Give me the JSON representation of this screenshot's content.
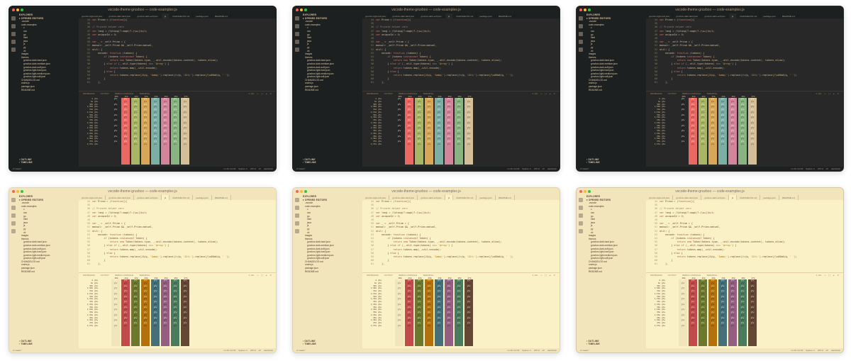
{
  "window_title": "vscode-theme-gruvbox — code-examples.js",
  "sidebar": {
    "title": "EXPLORER",
    "section": "OPENED EDITORS",
    "items": [
      {
        "label": ".vscode",
        "indent": 1
      },
      {
        "label": "code-examples",
        "indent": 1
      },
      {
        "label": "c",
        "indent": 2
      },
      {
        "label": "css",
        "indent": 2
      },
      {
        "label": "go",
        "indent": 2
      },
      {
        "label": "html",
        "indent": 2
      },
      {
        "label": "java",
        "indent": 2
      },
      {
        "label": "js",
        "indent": 2
      },
      {
        "label": "py",
        "indent": 2
      },
      {
        "label": "vb",
        "indent": 2
      },
      {
        "label": "images",
        "indent": 1
      },
      {
        "label": "themes",
        "indent": 1
      },
      {
        "label": "gruvbox-dark-hard.json",
        "indent": 2
      },
      {
        "label": "gruvbox-dark-medium.json",
        "indent": 2
      },
      {
        "label": "gruvbox-dark-soft.json",
        "indent": 2
      },
      {
        "label": "gruvbox-light-hard.json",
        "indent": 2
      },
      {
        "label": "gruvbox-light-medium.json",
        "indent": 2
      },
      {
        "label": "gruvbox-light-soft.json",
        "indent": 2
      },
      {
        "label": "CHANGELOG.md",
        "indent": 1
      },
      {
        "label": "codes.js",
        "indent": 1
      },
      {
        "label": "package.json",
        "indent": 1
      },
      {
        "label": "README.md",
        "indent": 1
      }
    ],
    "outline": "OUTLINE",
    "timeline": "TIMELINE"
  },
  "tabs": [
    "gruvbox-light-soft.json",
    "gruvbox-dark-hard.json",
    "gruvbox-dark-soft.json",
    "js",
    "CHANGELOG.md",
    "package.json",
    "README.md"
  ],
  "code_lines": [
    {
      "n": "44",
      "code": "var Prism = (function(){"
    },
    {
      "n": "45",
      "code": ""
    },
    {
      "n": "46",
      "code": "// Private helper vars"
    },
    {
      "n": "47",
      "code": "var lang = /\\blang(?:uage)?-(\\w+)\\b/i;"
    },
    {
      "n": "48",
      "code": "var uniqueId = 0;"
    },
    {
      "n": "49",
      "code": ""
    },
    {
      "n": "50",
      "code": "var _ = _self.Prism = {"
    },
    {
      "n": "51",
      "code": "manual: _self.Prism && _self.Prism.manual,"
    },
    {
      "n": "52",
      "code": "util: {"
    },
    {
      "n": "53",
      "code": "    encode: function (tokens) {"
    },
    {
      "n": "54",
      "code": "        if (tokens instanceof Token) {"
    },
    {
      "n": "55",
      "code": "            return new Token(tokens.type, _.util.encode(tokens.content), tokens.alias);"
    },
    {
      "n": "56",
      "code": "        } else if (_.util.type(tokens) === 'Array') {"
    },
    {
      "n": "57",
      "code": "            return tokens.map(_.util.encode);"
    },
    {
      "n": "58",
      "code": "        } else {"
    },
    {
      "n": "59",
      "code": "            return tokens.replace(/&/g, '&amp;').replace(/</g, '&lt;').replace(/\\u00a0/g, ' ');"
    },
    {
      "n": "60",
      "code": "        }"
    },
    {
      "n": "61",
      "code": "    },"
    }
  ],
  "panel": {
    "tabs": [
      "PROBLEMS",
      "OUTPUT",
      "DEBUG CONSOLE",
      "TERMINAL"
    ],
    "active": "TERMINAL",
    "shell": "1: zsh"
  },
  "terminal": {
    "header": [
      "40m",
      "41m",
      "42m",
      "43m",
      "44m",
      "45m",
      "46m",
      "47m"
    ],
    "row_labels": [
      "m",
      "1m",
      "30m",
      "1;30m",
      "31m",
      "1;31m",
      "32m",
      "1;32m",
      "33m",
      "1;33m",
      "34m",
      "1;34m",
      "35m",
      "1;35m",
      "36m",
      "1;36m",
      "37m",
      "1;37m"
    ],
    "sample": "gYw"
  },
  "statusbar": {
    "left": "master*",
    "right": [
      "Ln 26, Col 33",
      "Spaces: 4",
      "UTF-8",
      "LF",
      "JavaScript"
    ]
  },
  "themes": [
    {
      "mode": "dark",
      "bg": "#1d2021",
      "label": "dark-hard"
    },
    {
      "mode": "dark",
      "bg": "#282828",
      "label": "dark-medium"
    },
    {
      "mode": "dark",
      "bg": "#32302f",
      "label": "dark-soft"
    },
    {
      "mode": "light",
      "bg": "#f9f5d7",
      "label": "light-hard"
    },
    {
      "mode": "light",
      "bg": "#fbf1c7",
      "label": "light-medium"
    },
    {
      "mode": "light",
      "bg": "#f2e5bc",
      "label": "light-soft"
    }
  ],
  "ansi_colors_dark": [
    "#282828",
    "#ea6962",
    "#a9b665",
    "#d8a657",
    "#7daea3",
    "#d3869b",
    "#89b482",
    "#d4be98"
  ],
  "ansi_colors_light": [
    "#f2e5bc",
    "#c14a4a",
    "#6c782e",
    "#b47109",
    "#45707a",
    "#945e80",
    "#4c7a5d",
    "#654735"
  ]
}
